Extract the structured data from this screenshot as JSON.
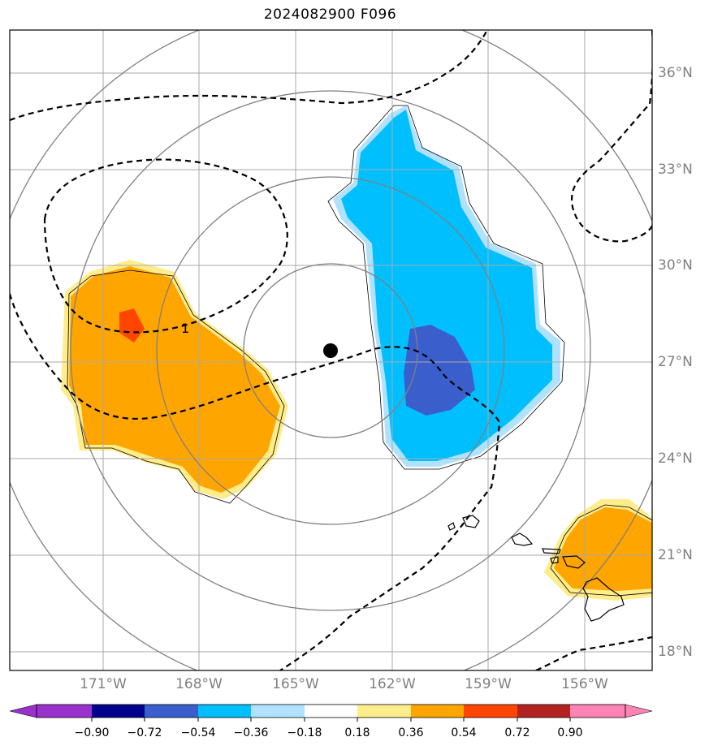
{
  "title": "2024082900 F096",
  "map": {
    "lat_labels": [
      "36°N",
      "33°N",
      "30°N",
      "27°N",
      "24°N",
      "21°N",
      "18°N"
    ],
    "lon_labels": [
      "171°W",
      "168°W",
      "165°W",
      "162°W",
      "159°W",
      "156°W"
    ],
    "contour_label": "1",
    "center_marker": {
      "lat": 27.4,
      "lon": "163.9°W"
    }
  },
  "colorbar": {
    "labels": [
      "−0.90",
      "−0.72",
      "−0.54",
      "−0.36",
      "−0.18",
      "0.18",
      "0.36",
      "0.54",
      "0.72",
      "0.90"
    ],
    "colors": [
      "#9932CC",
      "#00008B",
      "#3A5FCD",
      "#00BFFF",
      "#B0E2FF",
      "#FFFFFF",
      "#FFEC8B",
      "#FFA500",
      "#FF4500",
      "#B22222",
      "#FF83B5"
    ]
  }
}
